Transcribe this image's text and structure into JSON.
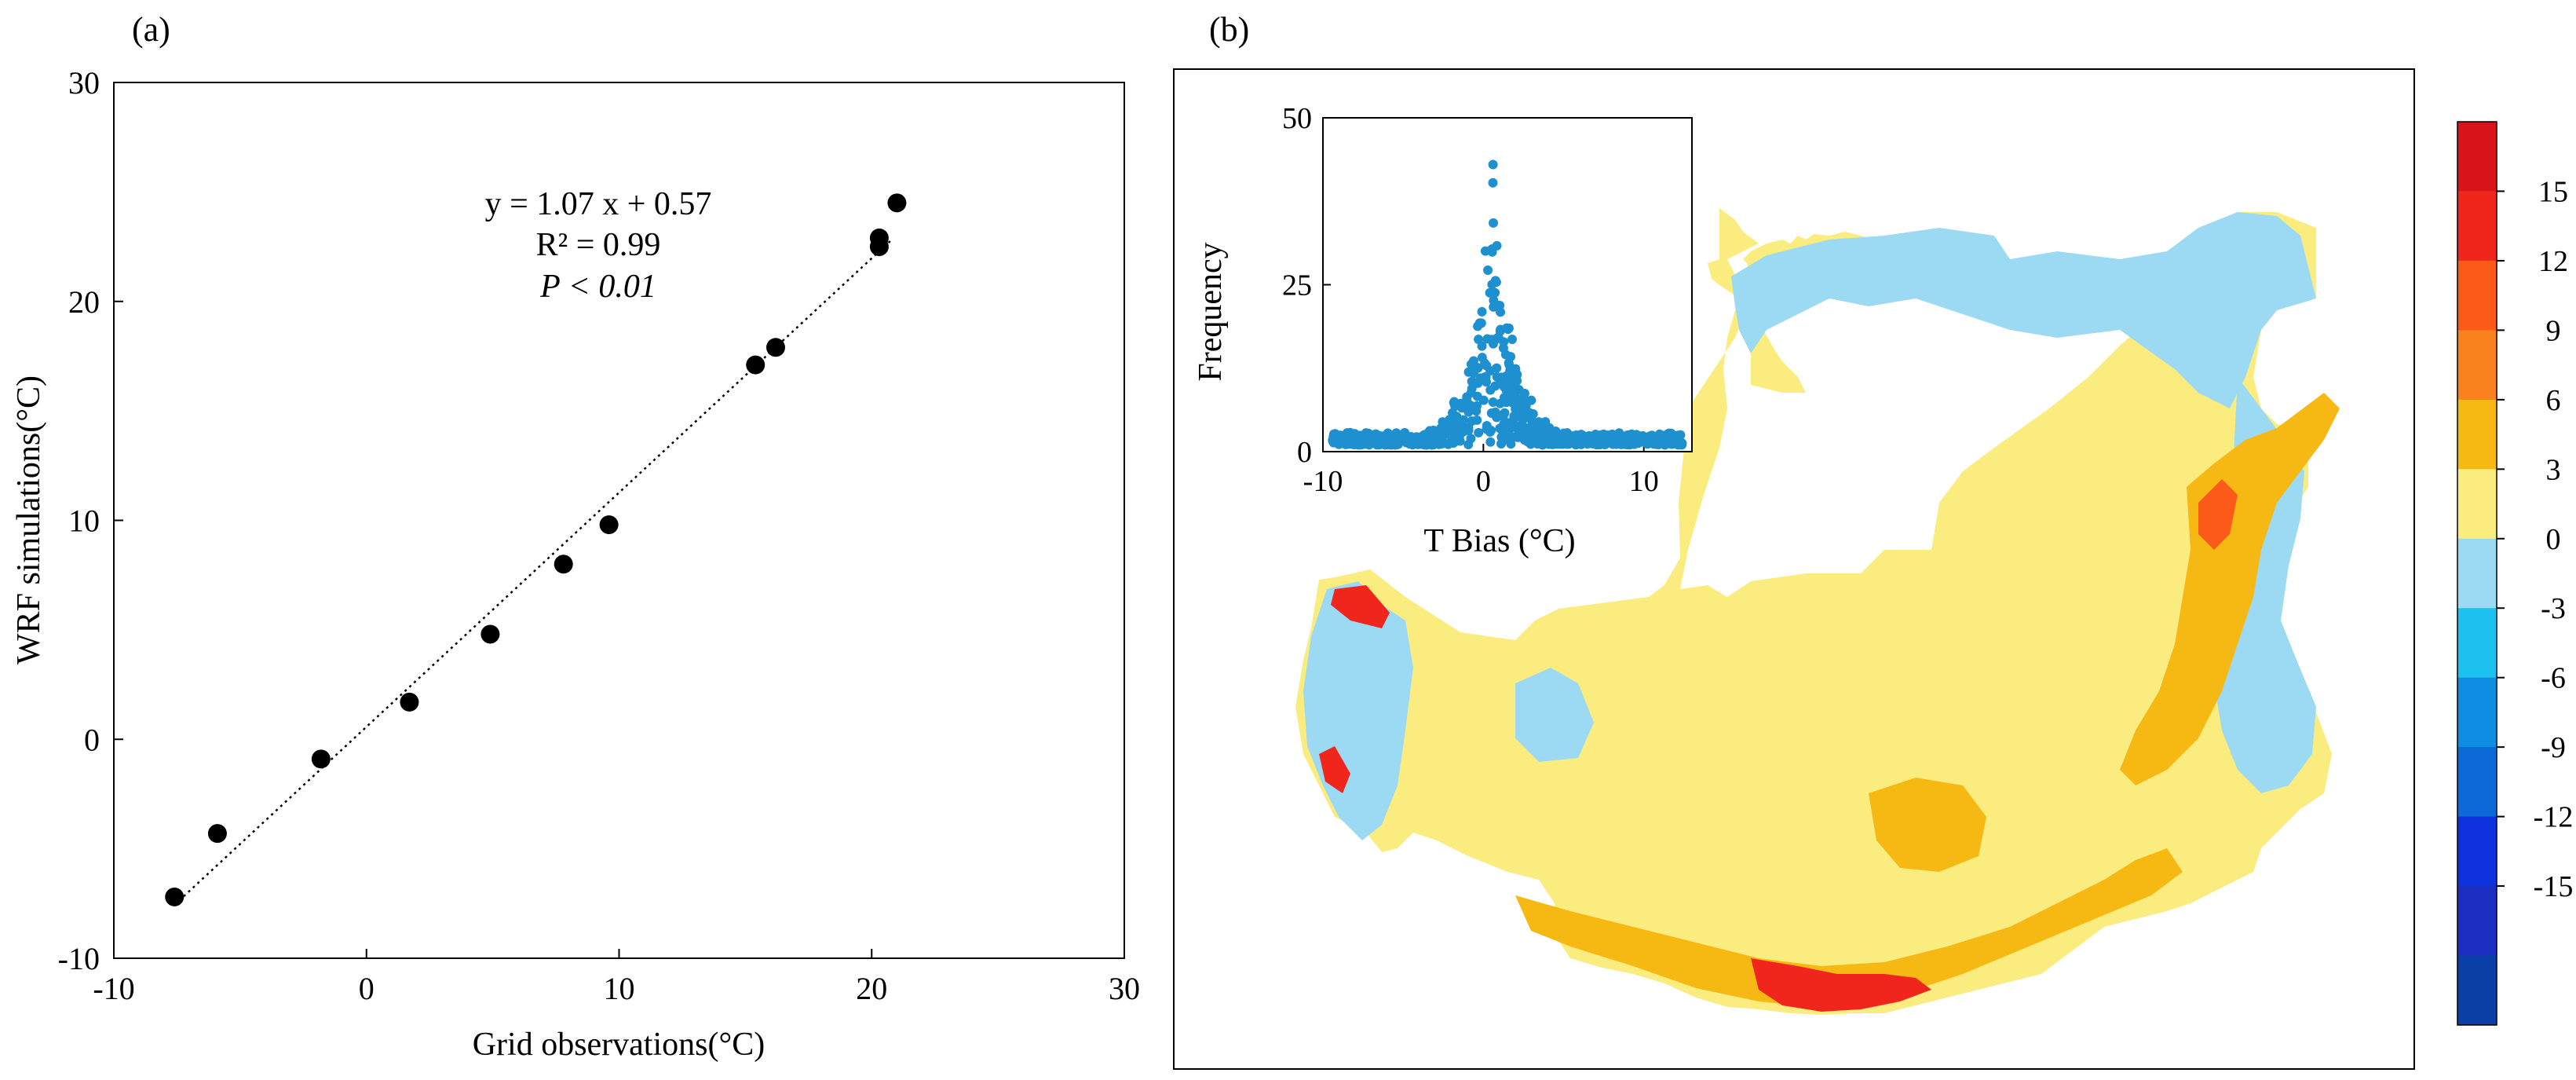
{
  "chart_data": [
    {
      "panel_label": "(a)",
      "type": "scatter",
      "xlabel": "Grid observations(°C)",
      "ylabel": "WRF simulations(°C)",
      "xlim": [
        -10,
        30
      ],
      "ylim": [
        -10,
        30
      ],
      "xticks": [
        -10,
        0,
        10,
        20,
        30
      ],
      "yticks": [
        -10,
        0,
        10,
        20,
        30
      ],
      "points": [
        {
          "x": -7.6,
          "y": -7.2
        },
        {
          "x": -5.9,
          "y": -4.3
        },
        {
          "x": -1.8,
          "y": -0.9
        },
        {
          "x": 1.7,
          "y": 1.7
        },
        {
          "x": 4.9,
          "y": 4.8
        },
        {
          "x": 7.8,
          "y": 8.0
        },
        {
          "x": 9.6,
          "y": 9.8
        },
        {
          "x": 15.4,
          "y": 17.1
        },
        {
          "x": 16.2,
          "y": 17.9
        },
        {
          "x": 20.3,
          "y": 22.5
        },
        {
          "x": 20.3,
          "y": 22.9
        },
        {
          "x": 21.0,
          "y": 24.5
        }
      ],
      "fit": {
        "slope": 1.07,
        "intercept": 0.57,
        "x_range": [
          -7.6,
          20.8
        ],
        "style": "dotted"
      },
      "annotations": [
        "y = 1.07 x + 0.57",
        "R² = 0.99",
        "P < 0.01"
      ],
      "marker_color": "#000000"
    },
    {
      "panel_label": "(b)",
      "type": "heatmap",
      "description_values": "spatial map of temperature bias",
      "colorbar": {
        "ticks": [
          15,
          12,
          9,
          6,
          3,
          0,
          -3,
          -6,
          -9,
          -12,
          -15
        ],
        "colors": [
          "#d8141a",
          "#f0261c",
          "#fb5a18",
          "#f9821e",
          "#f6b914",
          "#fbec7f",
          "#9cd9f2",
          "#1cc1ef",
          "#0d8ee2",
          "#0b6ad8",
          "#0e33de",
          "#1d2fc2",
          "#0a3fa5"
        ]
      },
      "inset": {
        "type": "scatter",
        "xlabel": "T Bias (°C)",
        "ylabel": "Frequency",
        "xlim": [
          -10,
          13
        ],
        "ylim": [
          0,
          50
        ],
        "xticks": [
          -10,
          0,
          10
        ],
        "yticks": [
          0,
          25,
          50
        ],
        "peak": {
          "x": 0.6,
          "y": 43
        },
        "marker_color": "#1e90d0"
      }
    }
  ]
}
